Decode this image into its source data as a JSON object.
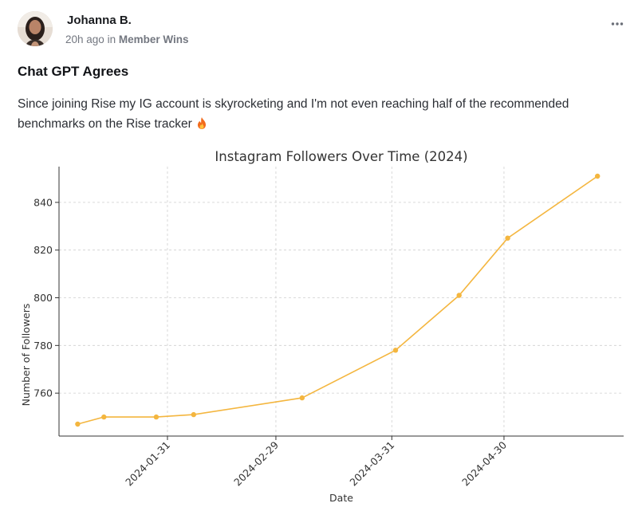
{
  "post": {
    "author": "Johanna B.",
    "time": "20h ago",
    "in_word": "in",
    "space": "Member Wins",
    "menu_icon": "more-horizontal-icon",
    "title": "Chat GPT Agrees",
    "body": "Since joining Rise my IG account is skyrocketing and I'm not even reaching half of the recommended benchmarks on the Rise tracker",
    "body_emoji": "fire-icon"
  },
  "chart_data": {
    "type": "line",
    "title": "Instagram Followers Over Time (2024)",
    "xlabel": "Date",
    "ylabel": "Number of Followers",
    "x": [
      "2024-01-07",
      "2024-01-14",
      "2024-01-28",
      "2024-02-07",
      "2024-03-07",
      "2024-04-01",
      "2024-04-18",
      "2024-05-01",
      "2024-05-25"
    ],
    "series": [
      {
        "values": [
          747,
          750,
          750,
          751,
          758,
          778,
          801,
          825,
          851
        ]
      }
    ],
    "x_ticks": [
      "2024-01-31",
      "2024-02-29",
      "2024-03-31",
      "2024-04-30"
    ],
    "y_ticks": [
      760,
      780,
      800,
      820,
      840
    ],
    "xlim": [
      "2024-01-02",
      "2024-06-01"
    ],
    "ylim": [
      742,
      855
    ],
    "grid": true,
    "line_color": "#f4b63f"
  }
}
